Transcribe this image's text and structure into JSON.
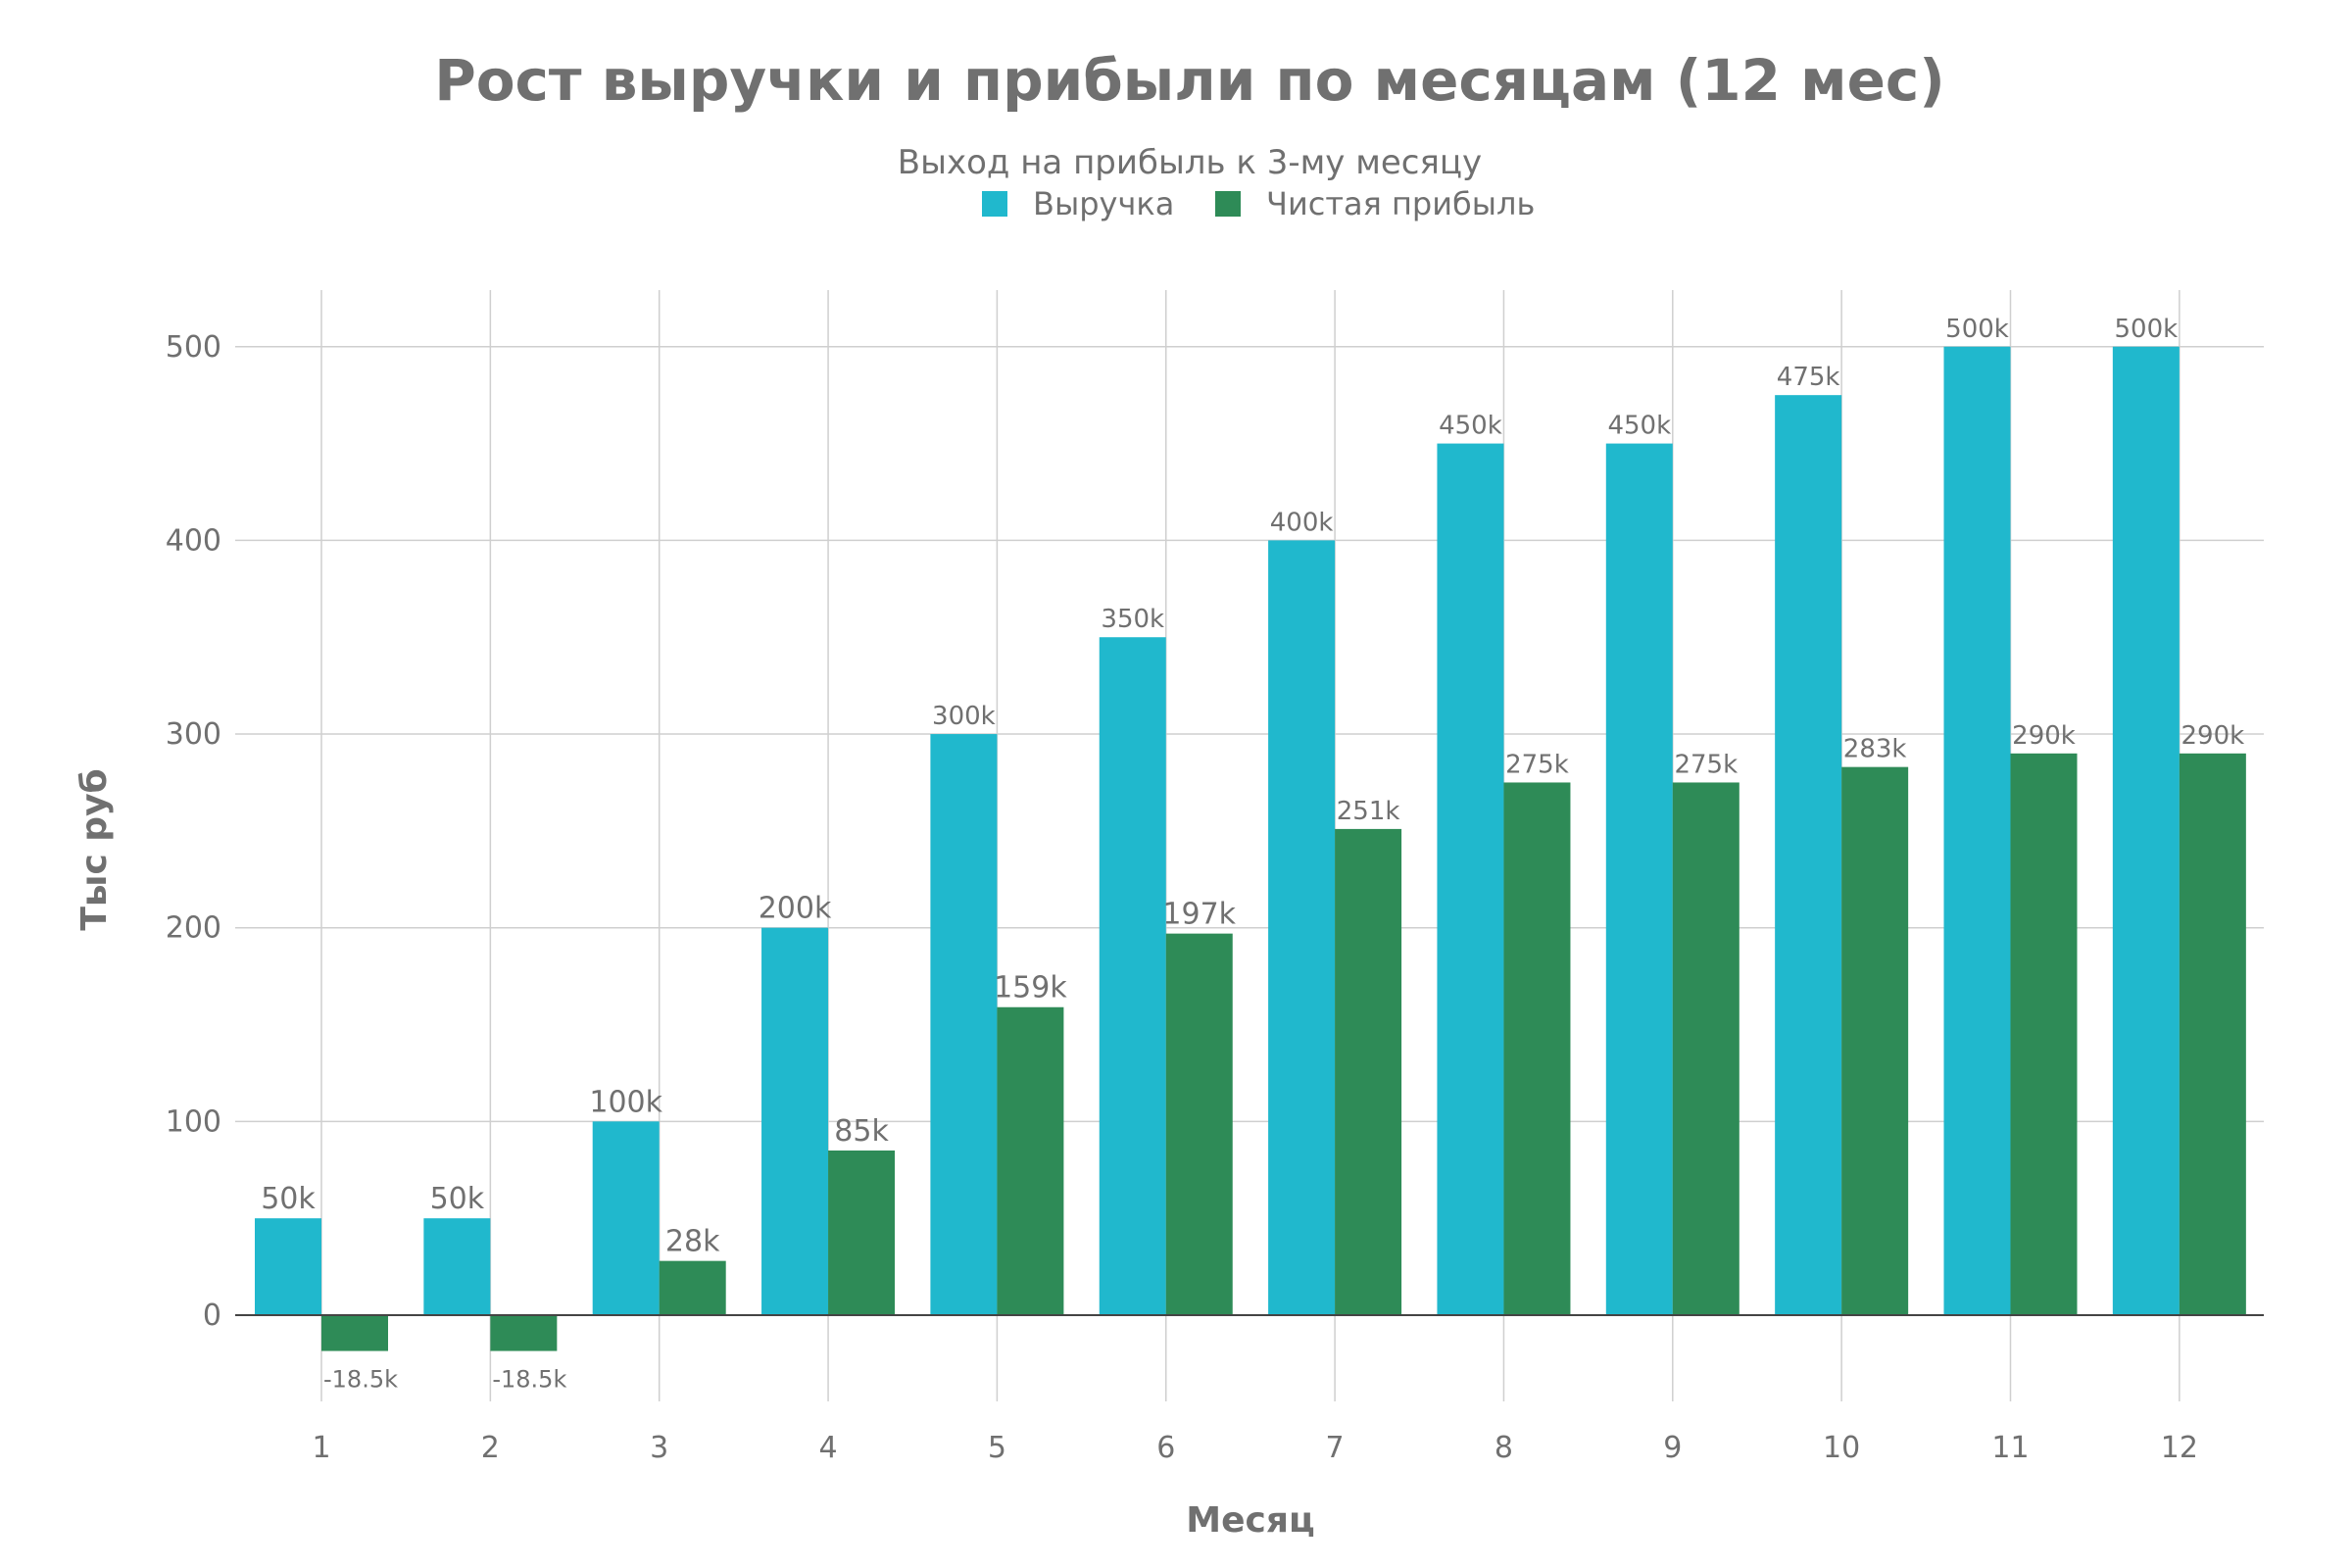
{
  "chart_data": {
    "type": "bar",
    "title": "Рост выручки и прибыли по месяцам (12 мес)",
    "subtitle": "Выход на прибыль к 3-му месяцу",
    "xlabel": "Месяц",
    "ylabel": "Тыс руб",
    "categories": [
      "1",
      "2",
      "3",
      "4",
      "5",
      "6",
      "7",
      "8",
      "9",
      "10",
      "11",
      "12"
    ],
    "series": [
      {
        "name": "Выручка",
        "color": "#20b8cd",
        "values": [
          50,
          50,
          100,
          200,
          300,
          350,
          400,
          450,
          450,
          475,
          500,
          500
        ],
        "labels": [
          "50k",
          "50k",
          "100k",
          "200k",
          "300k",
          "350k",
          "400k",
          "450k",
          "450k",
          "475k",
          "500k",
          "500k"
        ]
      },
      {
        "name": "Чистая прибыль",
        "color": "#2e8b57",
        "values": [
          -18.5,
          -18.5,
          28,
          85,
          159,
          197,
          251,
          275,
          275,
          283,
          290,
          290
        ],
        "labels": [
          "-18.5k",
          "-18.5k",
          "28k",
          "85k",
          "159k",
          "197k",
          "251k",
          "275k",
          "275k",
          "283k",
          "290k",
          "290k"
        ]
      }
    ],
    "ylim": [
      -50,
      530
    ],
    "yticks": [
      0,
      100,
      200,
      300,
      400,
      500
    ],
    "grid": true,
    "legend_position": "top-center"
  }
}
